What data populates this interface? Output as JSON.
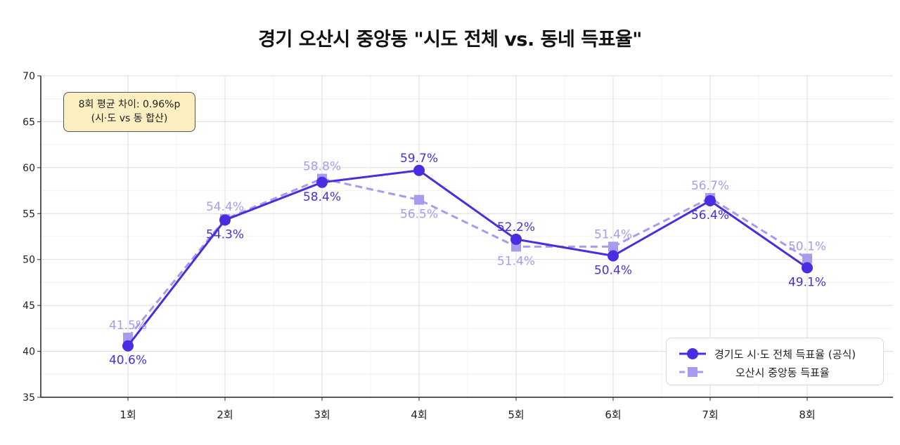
{
  "chart_data": {
    "type": "line",
    "title": "경기 오산시 중앙동 \"시도 전체 vs. 동네 득표율\"",
    "xlabel": "",
    "ylabel": "",
    "categories": [
      "1회",
      "2회",
      "3회",
      "4회",
      "5회",
      "6회",
      "7회",
      "8회"
    ],
    "ylim": [
      35,
      70
    ],
    "yticks": [
      "35",
      "40",
      "45",
      "50",
      "55",
      "60",
      "65",
      "70"
    ],
    "grid": true,
    "legend_position": "bottom-right",
    "series": [
      {
        "name": "경기도 시·도 전체 득표율 (공식)",
        "values": [
          40.6,
          54.3,
          58.4,
          59.7,
          52.2,
          50.4,
          56.4,
          49.1
        ],
        "labels": [
          "40.6%",
          "54.3%",
          "58.4%",
          "59.7%",
          "52.2%",
          "50.4%",
          "56.4%",
          "49.1%"
        ],
        "color": "#4a2de0",
        "style": "solid",
        "marker": "circle"
      },
      {
        "name": "오산시 중앙동 득표율",
        "values": [
          41.5,
          54.4,
          58.8,
          56.5,
          51.4,
          51.4,
          56.7,
          50.1
        ],
        "labels": [
          "41.5%",
          "54.4%",
          "58.8%",
          "56.5%",
          "51.4%",
          "51.4%",
          "56.7%",
          "50.1%"
        ],
        "color": "#a99af0",
        "style": "dashed",
        "marker": "square"
      }
    ],
    "annotation": {
      "line1": "8회 평균 차이: 0.96%p",
      "line2": "(시·도 vs 동 합산)"
    }
  }
}
